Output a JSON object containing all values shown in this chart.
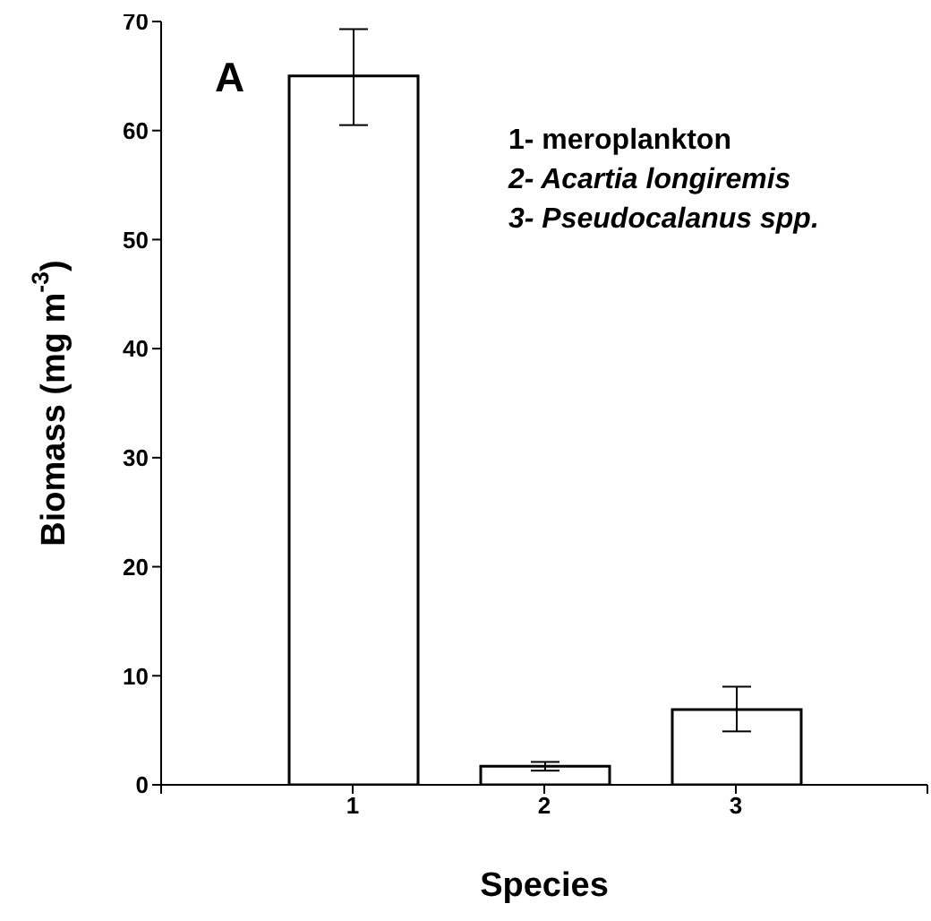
{
  "chart_data": {
    "type": "bar",
    "xlabel": "Species",
    "ylabel": "Biomass (mg m$^{-3}$)",
    "x": [
      1,
      2,
      3
    ],
    "values": [
      65,
      1.7,
      6.9
    ],
    "color": "#ffffff",
    "errors": [
      [
        60.5,
        69.3
      ],
      [
        1.3,
        2.1
      ],
      [
        4.9,
        9
      ]
    ],
    "xlim": [
      0,
      4
    ],
    "xticks": [
      {
        "value": 0,
        "label": null
      },
      1,
      2,
      3,
      {
        "value": 4,
        "label": null
      }
    ],
    "ylim": [
      0,
      70
    ],
    "yticks": [
      0,
      10,
      20,
      30,
      40,
      50,
      60,
      70
    ],
    "annotations": [
      "A",
      "1- meroplankton",
      "2- Acartia longiremis",
      "3- Pseudocalanus spp."
    ],
    "grid": false,
    "legend": false
  }
}
